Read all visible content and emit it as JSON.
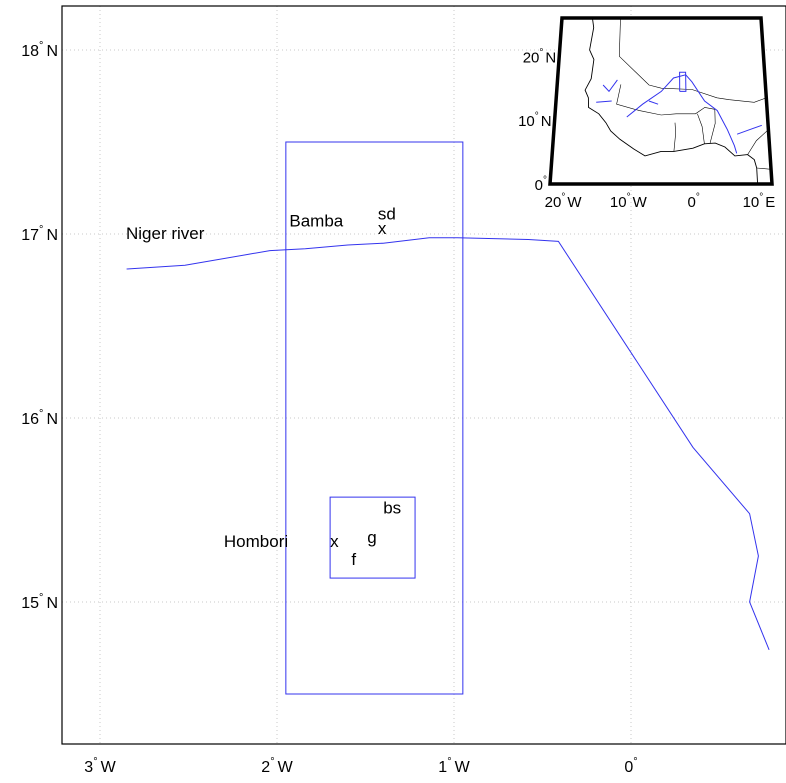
{
  "map": {
    "x_ticks": [
      {
        "lon": -3,
        "num": "3",
        "hemi": "W"
      },
      {
        "lon": -2,
        "num": "2",
        "hemi": "W"
      },
      {
        "lon": -1,
        "num": "1",
        "hemi": "W"
      },
      {
        "lon": 0,
        "num": "0",
        "hemi": ""
      }
    ],
    "y_ticks": [
      {
        "lat": 18,
        "num": "18",
        "hemi": "N"
      },
      {
        "lat": 17,
        "num": "17",
        "hemi": "N"
      },
      {
        "lat": 16,
        "num": "16",
        "hemi": "N"
      },
      {
        "lat": 15,
        "num": "15",
        "hemi": "N"
      }
    ],
    "degree_symbol": "°",
    "river_label": "Niger river",
    "river": [
      [
        -2.85,
        16.81
      ],
      [
        -2.52,
        16.83
      ],
      [
        -2.04,
        16.91
      ],
      [
        -1.84,
        16.92
      ],
      [
        -1.6,
        16.94
      ],
      [
        -1.4,
        16.95
      ],
      [
        -1.14,
        16.98
      ],
      [
        -0.98,
        16.98
      ],
      [
        -0.58,
        16.97
      ],
      [
        -0.41,
        16.96
      ],
      [
        0.35,
        15.84
      ],
      [
        0.67,
        15.48
      ],
      [
        0.72,
        15.25
      ],
      [
        0.67,
        15.0
      ],
      [
        0.78,
        14.74
      ]
    ],
    "study_box": {
      "lon_min": -1.95,
      "lon_max": -0.95,
      "lat_min": 14.5,
      "lat_max": 17.5
    },
    "sub_box": {
      "lon_min": -1.7,
      "lon_max": -1.22,
      "lat_min": 15.13,
      "lat_max": 15.57
    },
    "places": [
      {
        "text": "Bamba",
        "lon": -1.93,
        "lat": 17.04
      },
      {
        "text": "sd",
        "lon": -1.43,
        "lat": 17.08
      },
      {
        "text": "x",
        "lon": -1.43,
        "lat": 17.0
      },
      {
        "text": "Hombori",
        "lon": -2.3,
        "lat": 15.3
      },
      {
        "text": "x",
        "lon": -1.7,
        "lat": 15.3
      },
      {
        "text": "f",
        "lon": -1.58,
        "lat": 15.2
      },
      {
        "text": "g",
        "lon": -1.49,
        "lat": 15.32
      },
      {
        "text": "bs",
        "lon": -1.4,
        "lat": 15.48
      }
    ]
  },
  "inset": {
    "y_ticks": [
      {
        "lat": 20,
        "num": "20",
        "hemi": "N"
      },
      {
        "lat": 10,
        "num": "10",
        "hemi": "N"
      },
      {
        "lat": 0,
        "num": "0",
        "hemi": ""
      }
    ],
    "x_ticks": [
      {
        "lon": -20,
        "num": "20",
        "hemi": "W"
      },
      {
        "lon": -10,
        "num": "10",
        "hemi": "W"
      },
      {
        "lon": 0,
        "num": "0",
        "hemi": ""
      },
      {
        "lon": 10,
        "num": "10",
        "hemi": "E"
      }
    ],
    "lon_range": [
      -22,
      12
    ],
    "lat_range": [
      0,
      26
    ],
    "study_box": {
      "lon_min": -2,
      "lon_max": -1,
      "lat_min": 14.5,
      "lat_max": 17.5
    },
    "coast": [
      [
        -17.0,
        27.0
      ],
      [
        -16.5,
        24.5
      ],
      [
        -17.0,
        21.0
      ],
      [
        -16.2,
        19.5
      ],
      [
        -16.5,
        16.5
      ],
      [
        -17.4,
        14.7
      ],
      [
        -16.8,
        13.5
      ],
      [
        -16.7,
        12.0
      ],
      [
        -15.0,
        11.0
      ],
      [
        -13.8,
        9.6
      ],
      [
        -13.0,
        8.3
      ],
      [
        -11.5,
        7.0
      ],
      [
        -9.3,
        5.5
      ],
      [
        -7.5,
        4.4
      ],
      [
        -5.0,
        5.1
      ],
      [
        -3.0,
        5.1
      ],
      [
        0.0,
        5.6
      ],
      [
        1.8,
        6.3
      ],
      [
        3.5,
        6.4
      ],
      [
        5.0,
        5.8
      ],
      [
        6.5,
        4.4
      ],
      [
        8.5,
        4.6
      ],
      [
        9.5,
        3.8
      ],
      [
        9.8,
        2.5
      ],
      [
        9.8,
        0.0
      ]
    ],
    "borders": [
      [
        [
          -12,
          27
        ],
        [
          -12,
          20
        ],
        [
          -7,
          15.5
        ],
        [
          -5,
          15
        ],
        [
          0,
          14.8
        ],
        [
          4,
          13.5
        ],
        [
          6,
          13.2
        ],
        [
          10,
          12.8
        ],
        [
          12,
          13.5
        ]
      ],
      [
        [
          -11.6,
          15.6
        ],
        [
          -12.2,
          12.5
        ],
        [
          -8.5,
          11.5
        ],
        [
          -5,
          10.8
        ],
        [
          -2.6,
          11
        ],
        [
          0.5,
          11
        ],
        [
          2,
          12
        ],
        [
          3.6,
          11.7
        ]
      ],
      [
        [
          -3,
          5.1
        ],
        [
          -2.7,
          8
        ],
        [
          -2.8,
          9.6
        ]
      ],
      [
        [
          1.8,
          6.3
        ],
        [
          1.5,
          9
        ],
        [
          0.8,
          11
        ]
      ],
      [
        [
          2.7,
          6.4
        ],
        [
          3.6,
          9.5
        ],
        [
          3.6,
          11.7
        ]
      ],
      [
        [
          8.5,
          4.6
        ],
        [
          10,
          6.8
        ],
        [
          12,
          8.5
        ]
      ],
      [
        [
          9.8,
          2.5
        ],
        [
          12,
          2.3
        ]
      ]
    ],
    "rivers": [
      [
        [
          -10.5,
          10.5
        ],
        [
          -8,
          12.5
        ],
        [
          -5,
          14.5
        ],
        [
          -3,
          16.6
        ],
        [
          -1,
          17.1
        ],
        [
          0,
          16
        ],
        [
          2,
          13
        ],
        [
          4,
          11.5
        ],
        [
          5.5,
          8.5
        ],
        [
          6.5,
          6
        ],
        [
          6.8,
          4.8
        ]
      ],
      [
        [
          -12.2,
          16.3
        ],
        [
          -13.5,
          14.5
        ],
        [
          -14.5,
          15.5
        ]
      ],
      [
        [
          -15.5,
          12.8
        ],
        [
          -13,
          13
        ]
      ],
      [
        [
          7,
          7.8
        ],
        [
          9,
          8.5
        ],
        [
          11,
          9.2
        ]
      ],
      [
        [
          -5.5,
          12.5
        ],
        [
          -7,
          13
        ]
      ]
    ]
  }
}
